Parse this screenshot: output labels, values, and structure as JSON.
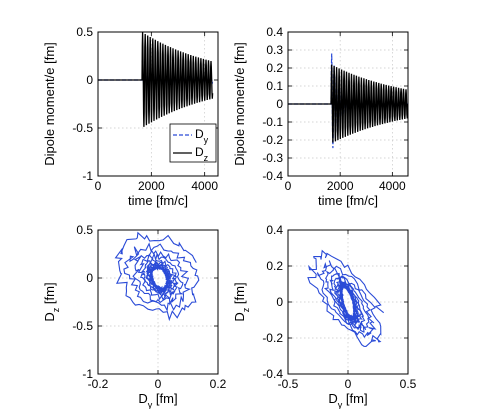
{
  "chart_data": [
    {
      "type": "line",
      "xlabel": "time [fm/c]",
      "ylabel": "Dipole moment/e [fm]",
      "xlim": [
        0,
        4500
      ],
      "ylim": [
        -1,
        0.5
      ],
      "xticks": [
        "0",
        "2000",
        "4000"
      ],
      "yticks": [
        "0.5",
        "0",
        "-0.5",
        "-1"
      ],
      "grid": "on",
      "legend": {
        "position": "inside-right",
        "entries": [
          "D_y",
          "D_z"
        ]
      },
      "series": [
        {
          "name": "D_y",
          "style": "dashed",
          "color": "#2a4bd7",
          "onset": 1650,
          "amplitude": 0.06,
          "period": 95,
          "decay": 4000,
          "end": 4300
        },
        {
          "name": "D_z",
          "style": "solid",
          "color": "#000000",
          "onset": 1650,
          "amplitude": 0.5,
          "period": 95,
          "decay": 2800,
          "end": 4300
        }
      ]
    },
    {
      "type": "line",
      "xlabel": "time [fm/c]",
      "ylabel": "Dipole moment/e [fm]",
      "xlim": [
        0,
        4600
      ],
      "ylim": [
        -0.4,
        0.4
      ],
      "xticks": [
        "0",
        "2000",
        "4000"
      ],
      "yticks": [
        "0.4",
        "0.3",
        "0.2",
        "0.1",
        "0",
        "-0.1",
        "-0.2",
        "-0.3",
        "-0.4"
      ],
      "grid": "on",
      "series": [
        {
          "name": "D_y",
          "style": "dashed",
          "color": "#2a4bd7",
          "onset": 1650,
          "amplitude": 0.3,
          "period": 95,
          "decay": 350,
          "end": 4600
        },
        {
          "name": "D_z",
          "style": "solid",
          "color": "#000000",
          "onset": 1650,
          "amplitude": 0.22,
          "period": 95,
          "decay": 2900,
          "end": 4600
        }
      ]
    },
    {
      "type": "scatter",
      "xlabel": "D_y [fm]",
      "ylabel": "D_z [fm]",
      "xlim": [
        -0.2,
        0.2
      ],
      "ylim": [
        -1,
        0.5
      ],
      "xticks": [
        "-0.2",
        "0",
        "0.2"
      ],
      "yticks": [
        "0.5",
        "0",
        "-0.5",
        "-1"
      ],
      "grid": "on",
      "color": "#2a4bd7",
      "trajectory": {
        "center": [
          0.005,
          0.0
        ],
        "rx_outer": 0.13,
        "rz_outer": 0.42,
        "rx_core": 0.025,
        "rz_core": 0.12
      }
    },
    {
      "type": "scatter",
      "xlabel": "D_y [fm]",
      "ylabel": "D_z [fm]",
      "xlim": [
        -0.5,
        0.5
      ],
      "ylim": [
        -0.4,
        0.4
      ],
      "xticks": [
        "-0.5",
        "0",
        "0.5"
      ],
      "yticks": [
        "0.4",
        "0.2",
        "0",
        "-0.2",
        "-0.4"
      ],
      "grid": "on",
      "color": "#2a4bd7",
      "trajectory": {
        "center": [
          0.0,
          0.0
        ],
        "rx_outer": 0.3,
        "rz_outer": 0.15,
        "rx_core": 0.05,
        "rz_core": 0.08
      }
    }
  ]
}
